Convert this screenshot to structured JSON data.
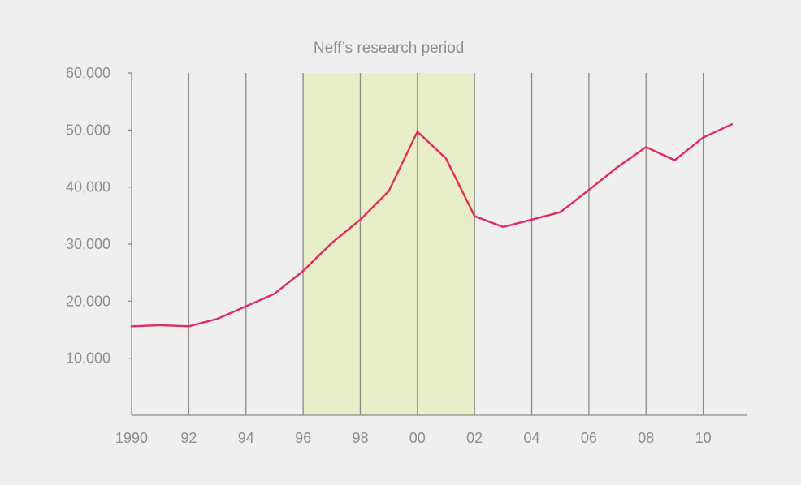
{
  "chart_data": {
    "type": "line",
    "title": "",
    "xlabel": "",
    "ylabel": "",
    "xlim": [
      1990,
      2012
    ],
    "ylim": [
      0,
      60000
    ],
    "x_ticks": [
      {
        "value": 1990,
        "label": "1990"
      },
      {
        "value": 1992,
        "label": "92"
      },
      {
        "value": 1994,
        "label": "94"
      },
      {
        "value": 1996,
        "label": "96"
      },
      {
        "value": 1998,
        "label": "98"
      },
      {
        "value": 2000,
        "label": "00"
      },
      {
        "value": 2002,
        "label": "02"
      },
      {
        "value": 2004,
        "label": "04"
      },
      {
        "value": 2006,
        "label": "06"
      },
      {
        "value": 2008,
        "label": "08"
      },
      {
        "value": 2010,
        "label": "10"
      }
    ],
    "y_ticks": [
      {
        "value": 10000,
        "label": "10,000"
      },
      {
        "value": 20000,
        "label": "20,000"
      },
      {
        "value": 30000,
        "label": "30,000"
      },
      {
        "value": 40000,
        "label": "40,000"
      },
      {
        "value": 50000,
        "label": "50,000"
      },
      {
        "value": 60000,
        "label": "60,000"
      }
    ],
    "grid": "vertical",
    "highlight_band": {
      "from": 1996,
      "to": 2002,
      "label": "Neff’s research period"
    },
    "series": [
      {
        "color": "#e32b5c",
        "x": [
          1990,
          1991,
          1992,
          1993,
          1994,
          1995,
          1996,
          1997,
          1998,
          1999,
          2000,
          2001,
          2002,
          2003,
          2004,
          2005,
          2006,
          2007,
          2008,
          2009,
          2010,
          2011
        ],
        "y": [
          15600,
          15800,
          15600,
          16900,
          19100,
          21300,
          25300,
          30200,
          34300,
          39300,
          49700,
          45000,
          34900,
          33000,
          34300,
          35600,
          39500,
          43500,
          47000,
          44700,
          48700,
          51000
        ]
      }
    ]
  },
  "colors": {
    "background": "#efefef",
    "band": "#e8efc8",
    "gridline": "#8a8a86",
    "axis": "#8a8a86",
    "text": "#8e8e88"
  }
}
